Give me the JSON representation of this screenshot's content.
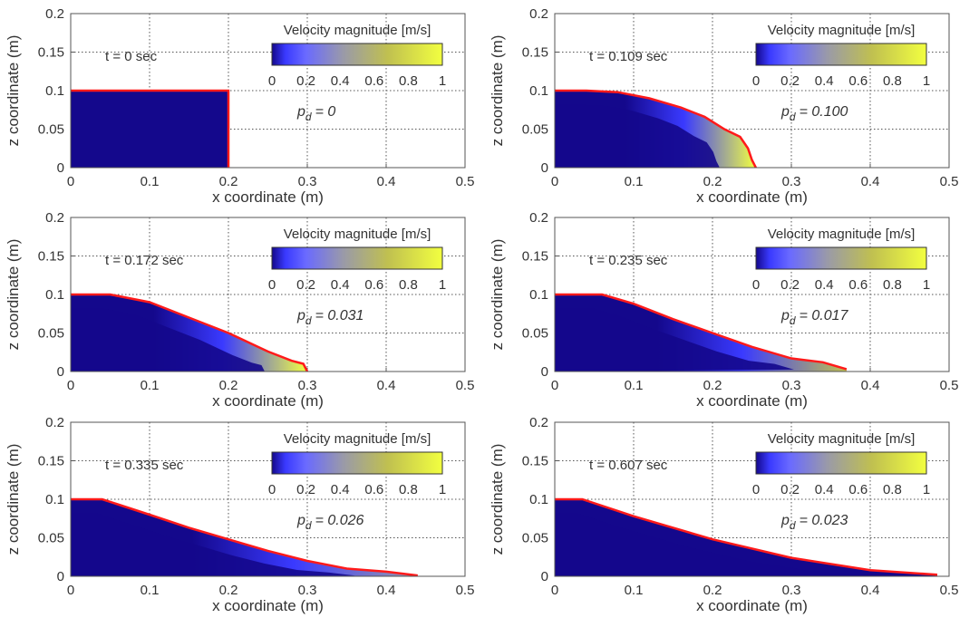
{
  "chart_data": {
    "type": "area",
    "layout": "3 rows x 2 columns",
    "grid": true,
    "colors": {
      "fluid": "#14088c",
      "surface_line": "#ff1a1a",
      "grid": "#555555"
    },
    "colorbar": {
      "title": "Velocity magnitude [m/s]",
      "range": [
        0,
        1
      ],
      "ticks": [
        "0",
        "0.2",
        "0.4",
        "0.6",
        "0.8",
        "1"
      ],
      "colormap": [
        "#14088c",
        "#3a3aff",
        "#6a6aff",
        "#9a9aa8",
        "#c0c050",
        "#f2ff40"
      ]
    },
    "panels": [
      {
        "time_label": "t = 0 sec",
        "pd_symbol": "p",
        "pd_sub": "d",
        "pd_value": "= 0",
        "xlabel": "x coordinate (m)",
        "ylabel": "z coordinate (m)",
        "xlim": [
          0,
          0.5
        ],
        "ylim": [
          0,
          0.2
        ],
        "xticks": [
          "0",
          "0.1",
          "0.2",
          "0.3",
          "0.4",
          "0.5"
        ],
        "yticks": [
          "0",
          "0.05",
          "0.1",
          "0.15",
          "0.2"
        ],
        "max_velocity_fraction": 0,
        "surface": [
          [
            0,
            0.1
          ],
          [
            0.2,
            0.1
          ],
          [
            0.2,
            0
          ]
        ]
      },
      {
        "time_label": "t = 0.109 sec",
        "pd_symbol": "p",
        "pd_sub": "d",
        "pd_value": "= 0.100",
        "xlabel": "x coordinate (m)",
        "ylabel": "z coordinate (m)",
        "xlim": [
          0,
          0.5
        ],
        "ylim": [
          0,
          0.2
        ],
        "xticks": [
          "0",
          "0.1",
          "0.2",
          "0.3",
          "0.4",
          "0.5"
        ],
        "yticks": [
          "0",
          "0.05",
          "0.1",
          "0.15",
          "0.2"
        ],
        "max_velocity_fraction": 1,
        "surface": [
          [
            0,
            0.1
          ],
          [
            0.04,
            0.1
          ],
          [
            0.08,
            0.098
          ],
          [
            0.12,
            0.09
          ],
          [
            0.16,
            0.078
          ],
          [
            0.19,
            0.066
          ],
          [
            0.215,
            0.05
          ],
          [
            0.235,
            0.04
          ],
          [
            0.245,
            0.025
          ],
          [
            0.25,
            0.01
          ],
          [
            0.255,
            0
          ]
        ]
      },
      {
        "time_label": "t = 0.172 sec",
        "pd_symbol": "p",
        "pd_sub": "d",
        "pd_value": "= 0.031",
        "xlabel": "x coordinate (m)",
        "ylabel": "z coordinate (m)",
        "xlim": [
          0,
          0.5
        ],
        "ylim": [
          0,
          0.2
        ],
        "xticks": [
          "0",
          "0.1",
          "0.2",
          "0.3",
          "0.4",
          "0.5"
        ],
        "yticks": [
          "0",
          "0.05",
          "0.1",
          "0.15",
          "0.2"
        ],
        "max_velocity_fraction": 0.95,
        "surface": [
          [
            0,
            0.1
          ],
          [
            0.05,
            0.1
          ],
          [
            0.1,
            0.09
          ],
          [
            0.15,
            0.07
          ],
          [
            0.2,
            0.05
          ],
          [
            0.25,
            0.026
          ],
          [
            0.28,
            0.014
          ],
          [
            0.295,
            0.01
          ],
          [
            0.3,
            0
          ]
        ]
      },
      {
        "time_label": "t = 0.235 sec",
        "pd_symbol": "p",
        "pd_sub": "d",
        "pd_value": "= 0.017",
        "xlabel": "x coordinate (m)",
        "ylabel": "z coordinate (m)",
        "xlim": [
          0,
          0.5
        ],
        "ylim": [
          0,
          0.2
        ],
        "xticks": [
          "0",
          "0.1",
          "0.2",
          "0.3",
          "0.4",
          "0.5"
        ],
        "yticks": [
          "0",
          "0.05",
          "0.1",
          "0.15",
          "0.2"
        ],
        "max_velocity_fraction": 0.55,
        "surface": [
          [
            0,
            0.1
          ],
          [
            0.06,
            0.1
          ],
          [
            0.1,
            0.088
          ],
          [
            0.15,
            0.068
          ],
          [
            0.2,
            0.05
          ],
          [
            0.25,
            0.032
          ],
          [
            0.3,
            0.017
          ],
          [
            0.34,
            0.012
          ],
          [
            0.37,
            0.003
          ]
        ]
      },
      {
        "time_label": "t = 0.335 sec",
        "pd_symbol": "p",
        "pd_sub": "d",
        "pd_value": "= 0.026",
        "xlabel": "x coordinate (m)",
        "ylabel": "z coordinate (m)",
        "xlim": [
          0,
          0.5
        ],
        "ylim": [
          0,
          0.2
        ],
        "xticks": [
          "0",
          "0.1",
          "0.2",
          "0.3",
          "0.4",
          "0.5"
        ],
        "yticks": [
          "0",
          "0.05",
          "0.1",
          "0.15",
          "0.2"
        ],
        "max_velocity_fraction": 0.35,
        "surface": [
          [
            0,
            0.1
          ],
          [
            0.04,
            0.1
          ],
          [
            0.1,
            0.08
          ],
          [
            0.15,
            0.063
          ],
          [
            0.2,
            0.048
          ],
          [
            0.25,
            0.033
          ],
          [
            0.3,
            0.02
          ],
          [
            0.35,
            0.01
          ],
          [
            0.4,
            0.006
          ],
          [
            0.44,
            0.001
          ]
        ]
      },
      {
        "time_label": "t = 0.607 sec",
        "pd_symbol": "p",
        "pd_sub": "d",
        "pd_value": "= 0.023",
        "xlabel": "x coordinate (m)",
        "ylabel": "z coordinate (m)",
        "xlim": [
          0,
          0.5
        ],
        "ylim": [
          0,
          0.2
        ],
        "xticks": [
          "0",
          "0.1",
          "0.2",
          "0.3",
          "0.4",
          "0.5"
        ],
        "yticks": [
          "0",
          "0.05",
          "0.1",
          "0.15",
          "0.2"
        ],
        "max_velocity_fraction": 0.05,
        "surface": [
          [
            0,
            0.1
          ],
          [
            0.035,
            0.1
          ],
          [
            0.1,
            0.078
          ],
          [
            0.2,
            0.048
          ],
          [
            0.3,
            0.024
          ],
          [
            0.4,
            0.008
          ],
          [
            0.485,
            0.002
          ]
        ]
      }
    ]
  }
}
